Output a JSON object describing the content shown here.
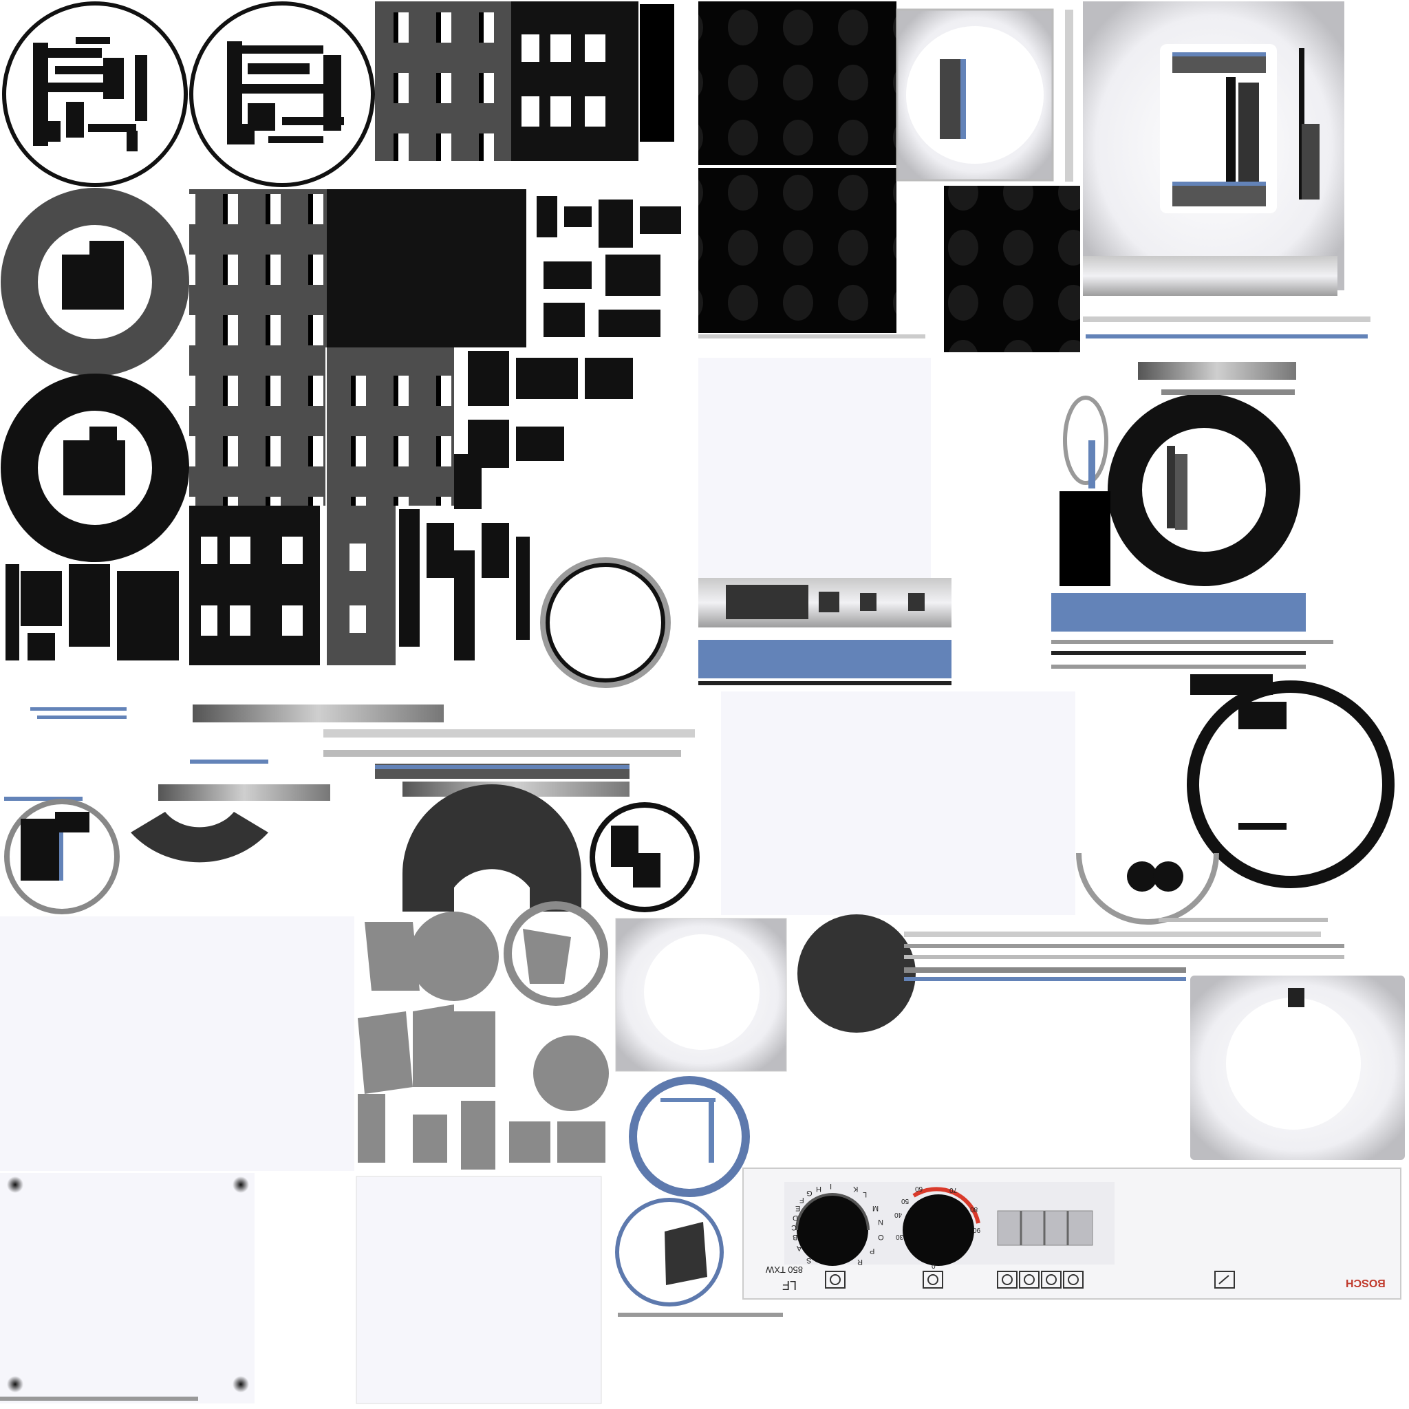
{
  "atlas": {
    "kind": "texture-atlas",
    "subject": "washing machine",
    "background": "#ffffff"
  },
  "colors": {
    "accent_blue": "#6383b8",
    "ring_blue": "#5d79ad",
    "dark": "#111111",
    "mid_grey": "#4b4b4b",
    "light_grey": "#9b9b9b",
    "panel_white": "#f6f6fb",
    "temp_red": "#d93a2b"
  },
  "control_panel": {
    "brand": "BOSCH",
    "model_line1": "LF",
    "model_line2": "850 TXW",
    "program_dial_letters": [
      "H",
      "I",
      "K",
      "L",
      "M",
      "N",
      "O",
      "P",
      "R",
      "S",
      "A",
      "B",
      "C",
      "D",
      "E",
      "F",
      "G"
    ],
    "temp_scale": [
      "30",
      "40",
      "50",
      "60",
      "70",
      "80",
      "90"
    ],
    "temp_low": "0",
    "icons": [
      "program-icon",
      "temperature-icon",
      "power-icon",
      "cancel-icon",
      "spin-off-icon",
      "rinse-hold-icon",
      "door-open-icon"
    ],
    "button_count": 4
  }
}
